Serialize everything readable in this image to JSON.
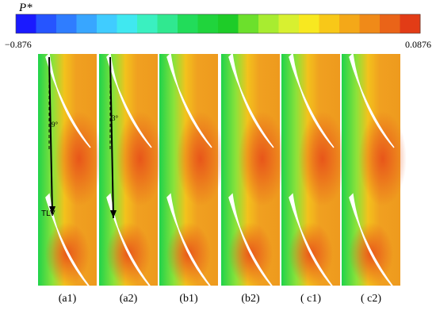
{
  "colorbar": {
    "title": "P*",
    "min_label": "−0.876",
    "max_label": "0.0876"
  },
  "panels": [
    {
      "label": "(a1)",
      "annotations": [
        "9°",
        "TLV"
      ]
    },
    {
      "label": "(a2)",
      "annotations": [
        "3°"
      ]
    },
    {
      "label": "(b1)"
    },
    {
      "label": "(b2)"
    },
    {
      "label": "( c1)"
    },
    {
      "label": "( c2)"
    }
  ]
}
